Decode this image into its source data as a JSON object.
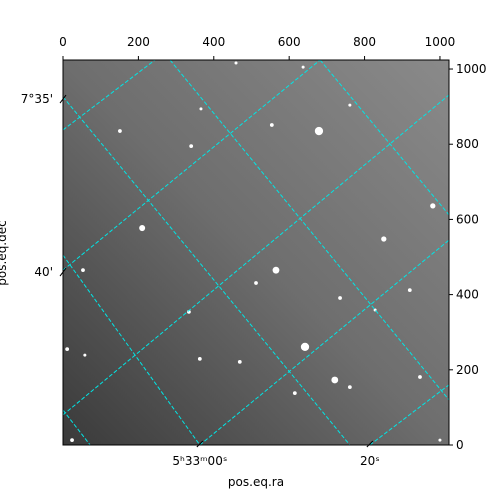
{
  "chart_data": {
    "type": "image",
    "xlabel": "pos.eq.ra",
    "ylabel": "pos.eq.dec",
    "xlim": [
      0,
      1024
    ],
    "ylim": [
      0,
      1024
    ],
    "xticks": [
      0,
      200,
      400,
      600,
      800,
      1000
    ],
    "yticks": [
      0,
      200,
      400,
      600,
      800,
      1000
    ],
    "ra_ticks": [
      {
        "value": 363,
        "label": "5ʰ33ᵐ00ˢ"
      },
      {
        "value": 814,
        "label": "20ˢ"
      }
    ],
    "dec_ticks": [
      {
        "value": 920,
        "label": "7°35'"
      },
      {
        "value": 460,
        "label": "40'"
      }
    ],
    "grid_color": "#00e5e5",
    "grid_lines": [
      [
        [
          0,
          838
        ],
        [
          244,
          1024
        ]
      ],
      [
        [
          0,
          465
        ],
        [
          682,
          1024
        ]
      ],
      [
        [
          0,
          80
        ],
        [
          1024,
          931
        ]
      ],
      [
        [
          363,
          0
        ],
        [
          1024,
          545
        ]
      ],
      [
        [
          814,
          0
        ],
        [
          1024,
          160
        ]
      ],
      [
        [
          0,
          926
        ],
        [
          761,
          0
        ]
      ],
      [
        [
          284,
          1024
        ],
        [
          1024,
          120
        ]
      ],
      [
        [
          682,
          1024
        ],
        [
          1024,
          612
        ]
      ],
      [
        [
          0,
          505
        ],
        [
          363,
          0
        ]
      ],
      [
        [
          0,
          93
        ],
        [
          72,
          0
        ]
      ]
    ],
    "stars": [
      [
        679,
        835,
        11
      ],
      [
        642,
        261,
        11
      ],
      [
        721,
        173,
        9
      ],
      [
        565,
        465,
        9
      ],
      [
        210,
        577,
        8
      ],
      [
        851,
        548,
        7
      ],
      [
        981,
        636,
        7
      ],
      [
        340,
        795,
        5
      ],
      [
        151,
        835,
        5
      ],
      [
        512,
        431,
        5
      ],
      [
        53,
        465,
        5
      ],
      [
        615,
        138,
        5
      ],
      [
        735,
        391,
        5
      ],
      [
        363,
        229,
        5
      ],
      [
        469,
        221,
        5
      ],
      [
        554,
        851,
        5
      ],
      [
        761,
        154,
        5
      ],
      [
        947,
        181,
        5
      ],
      [
        334,
        354,
        5
      ],
      [
        11,
        255,
        5
      ],
      [
        920,
        412,
        5
      ],
      [
        24,
        13,
        5
      ],
      [
        637,
        1005,
        4
      ],
      [
        761,
        904,
        4
      ],
      [
        366,
        894,
        4
      ],
      [
        58,
        239,
        4
      ],
      [
        1000,
        13,
        4
      ],
      [
        828,
        359,
        4
      ],
      [
        459,
        1016,
        4
      ]
    ]
  }
}
